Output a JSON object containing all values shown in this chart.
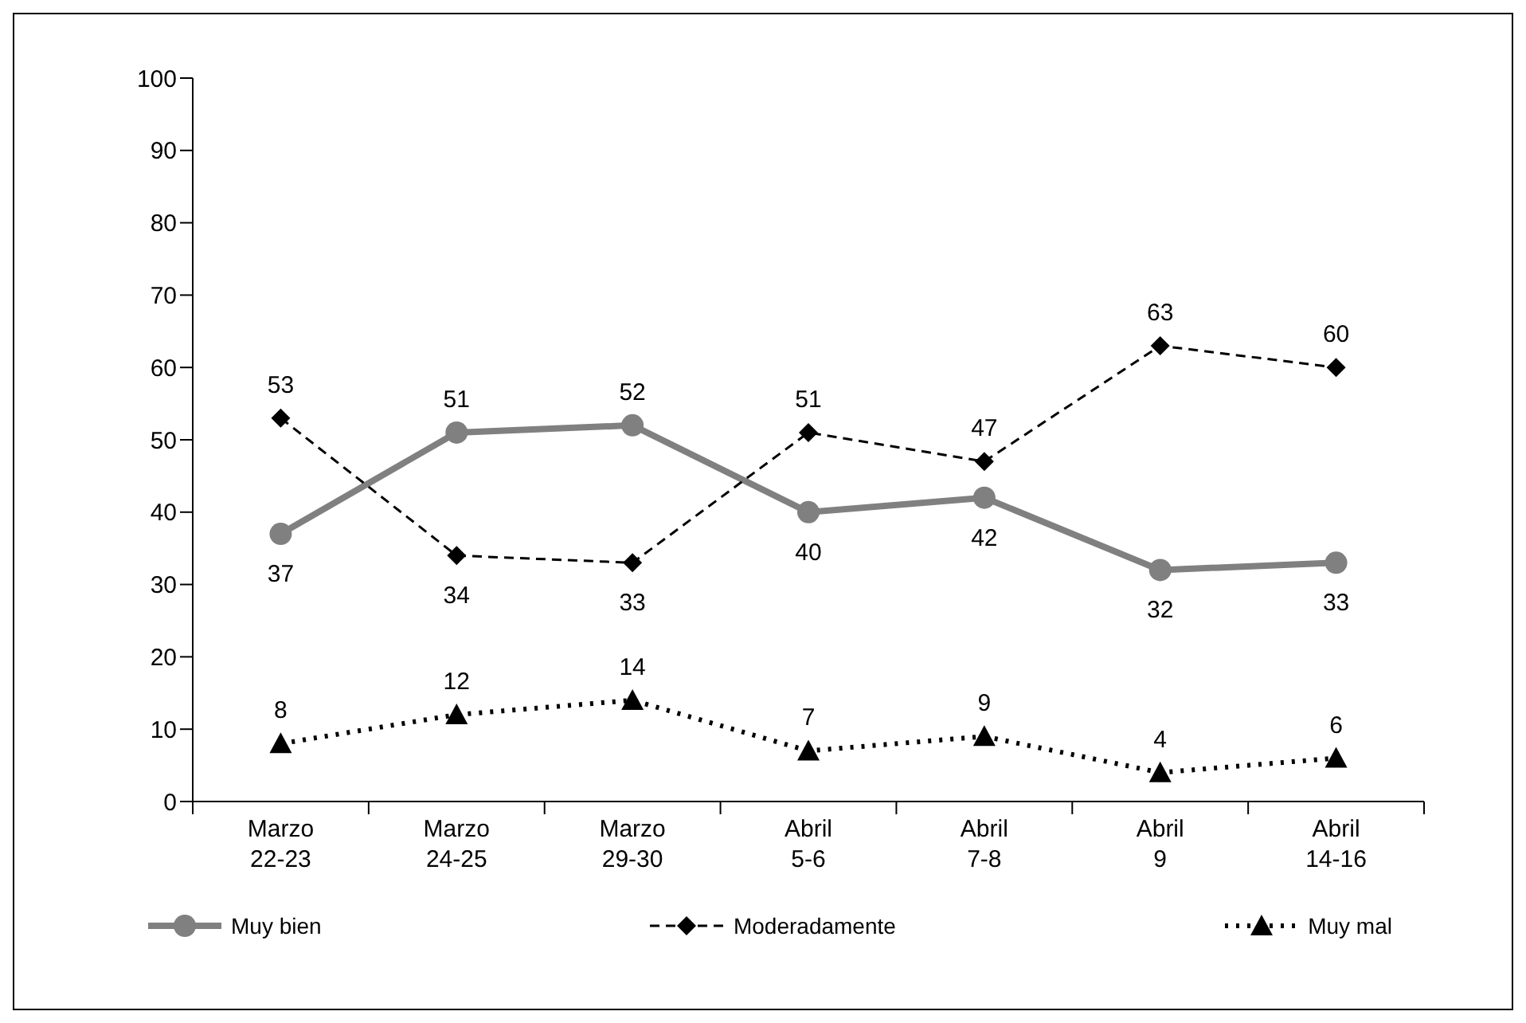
{
  "chart_data": {
    "type": "line",
    "categories": [
      "Marzo 22-23",
      "Marzo 24-25",
      "Marzo 29-30",
      "Abril 5-6",
      "Abril 7-8",
      "Abril 9",
      "Abril 14-16"
    ],
    "series": [
      {
        "name": "Muy bien",
        "color": "#808080",
        "values": [
          37,
          51,
          52,
          40,
          42,
          32,
          33
        ],
        "marker": "circle",
        "line_style": "solid"
      },
      {
        "name": "Moderadamente",
        "color": "#000000",
        "values": [
          53,
          34,
          33,
          51,
          47,
          63,
          60
        ],
        "marker": "diamond",
        "line_style": "dashed"
      },
      {
        "name": "Muy mal",
        "color": "#000000",
        "values": [
          8,
          12,
          14,
          7,
          9,
          4,
          6
        ],
        "marker": "triangle",
        "line_style": "dotted"
      }
    ],
    "ylim": [
      0,
      100
    ],
    "yticks": [
      0,
      10,
      20,
      30,
      40,
      50,
      60,
      70,
      80,
      90,
      100
    ],
    "grid": false,
    "legend": "bottom",
    "data_labels": true
  }
}
